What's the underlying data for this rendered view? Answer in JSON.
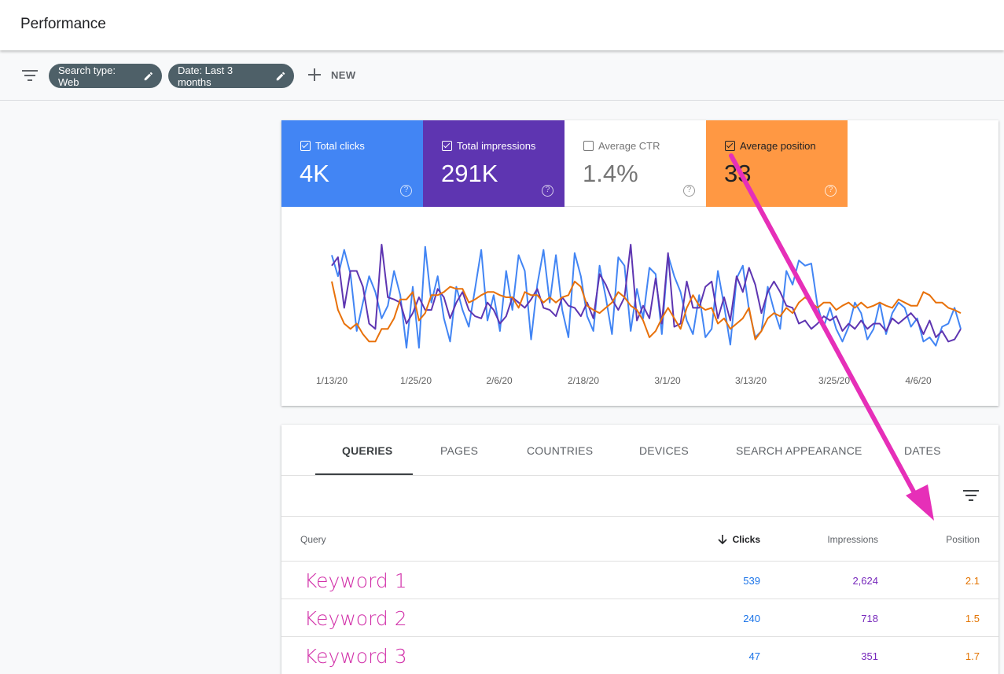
{
  "header": {
    "title": "Performance"
  },
  "filters": {
    "chips": [
      {
        "label": "Search type: Web"
      },
      {
        "label": "Date: Last 3 months"
      }
    ],
    "new_label": "NEW"
  },
  "metrics": [
    {
      "label": "Total clicks",
      "value": "4K",
      "checked": true,
      "color": "#4285f4"
    },
    {
      "label": "Total impressions",
      "value": "291K",
      "checked": true,
      "color": "#5e35b1"
    },
    {
      "label": "Average CTR",
      "value": "1.4%",
      "checked": false,
      "color": "#ffffff"
    },
    {
      "label": "Average position",
      "value": "33",
      "checked": true,
      "color": "#ff9843"
    }
  ],
  "chart_data": {
    "type": "line",
    "x_labels": [
      "1/13/20",
      "1/25/20",
      "2/6/20",
      "2/18/20",
      "3/1/20",
      "3/13/20",
      "3/25/20",
      "4/6/20"
    ],
    "grid": false,
    "legend": "none",
    "series": [
      {
        "color": "#4285f4",
        "values": [
          0.1,
          0.3,
          0.05,
          0.28,
          0.82,
          0.55,
          0.3,
          0.45,
          0.7,
          0.58,
          0.25,
          0.48,
          0.98,
          0.4,
          0.98,
          0.02,
          0.55,
          0.3,
          0.7,
          0.92,
          0.4,
          0.62,
          0.78,
          0.42,
          0.05,
          0.72,
          0.48,
          0.82,
          0.25,
          0.62,
          0.1,
          0.25,
          0.9,
          0.38,
          0.05,
          0.55,
          0.1,
          0.62,
          0.88,
          0.08,
          0.3,
          0.68,
          0.82,
          0.2,
          0.5,
          0.85,
          0.12,
          0.2,
          0.82,
          0.42,
          0.7,
          0.22,
          0.28,
          0.85,
          0.1,
          0.3,
          0.45,
          0.72,
          0.85,
          0.48,
          0.88,
          0.8,
          0.25,
          0.58,
          0.95,
          0.32,
          0.2,
          0.62,
          0.88,
          0.82,
          0.4,
          0.62,
          0.8,
          0.25,
          0.38,
          0.15,
          0.2,
          0.18,
          0.58,
          0.78,
          0.6,
          0.8,
          0.92,
          0.78,
          0.55,
          0.65,
          0.9,
          0.8,
          0.55,
          0.85,
          0.65,
          0.55,
          0.6,
          0.78,
          0.7,
          0.92,
          0.88,
          0.96,
          0.78,
          0.75,
          0.6,
          0.8
        ]
      },
      {
        "color": "#5e35b1",
        "values": [
          0.2,
          0.12,
          0.6,
          0.25,
          0.25,
          0.4,
          0.75,
          0.8,
          0.0,
          0.5,
          0.52,
          0.55,
          0.75,
          0.65,
          0.5,
          0.62,
          0.62,
          0.42,
          0.5,
          0.7,
          0.55,
          0.45,
          0.62,
          0.68,
          0.7,
          0.55,
          0.62,
          0.75,
          0.68,
          0.5,
          0.55,
          0.6,
          0.52,
          0.42,
          0.6,
          0.62,
          0.68,
          0.5,
          0.58,
          0.6,
          0.68,
          0.55,
          0.7,
          0.28,
          0.38,
          0.52,
          0.62,
          0.5,
          0.0,
          0.72,
          0.58,
          0.7,
          0.32,
          0.75,
          0.08,
          0.78,
          0.75,
          0.35,
          0.6,
          0.6,
          0.4,
          0.35,
          0.7,
          0.5,
          0.72,
          0.3,
          0.45,
          0.22,
          0.38,
          0.65,
          0.45,
          0.35,
          0.45,
          0.58,
          0.6,
          0.75,
          0.72,
          0.8,
          0.75,
          0.68,
          0.72,
          0.68,
          0.82,
          0.75,
          0.8,
          0.72,
          0.8,
          0.75,
          0.75,
          0.82,
          0.7,
          0.75,
          0.7,
          0.65,
          0.72,
          0.85,
          0.72,
          0.88,
          0.82,
          0.92,
          0.9,
          0.8
        ]
      },
      {
        "color": "#e8710a",
        "values": [
          0.35,
          0.62,
          0.75,
          0.8,
          0.75,
          0.85,
          0.92,
          0.92,
          0.8,
          0.8,
          0.7,
          0.52,
          0.52,
          0.45,
          0.72,
          0.65,
          0.48,
          0.48,
          0.45,
          0.4,
          0.42,
          0.42,
          0.55,
          0.52,
          0.48,
          0.45,
          0.45,
          0.48,
          0.5,
          0.5,
          0.6,
          0.45,
          0.48,
          0.48,
          0.55,
          0.5,
          0.55,
          0.5,
          0.48,
          0.35,
          0.4,
          0.58,
          0.62,
          0.65,
          0.6,
          0.55,
          0.45,
          0.5,
          0.58,
          0.62,
          0.72,
          0.88,
          0.82,
          0.7,
          0.6,
          0.7,
          0.8,
          0.6,
          0.48,
          0.58,
          0.62,
          0.6,
          0.75,
          0.7,
          0.8,
          0.75,
          0.7,
          0.6,
          0.9,
          0.82,
          0.7,
          0.65,
          0.68,
          0.6,
          0.65,
          0.55,
          0.5,
          0.55,
          0.6,
          0.55,
          0.55,
          0.62,
          0.58,
          0.55,
          0.6,
          0.55,
          0.6,
          0.58,
          0.55,
          0.58,
          0.6,
          0.52,
          0.55,
          0.58,
          0.58,
          0.45,
          0.48,
          0.55,
          0.55,
          0.6,
          0.62,
          0.65
        ]
      }
    ]
  },
  "table": {
    "tabs": [
      "QUERIES",
      "PAGES",
      "COUNTRIES",
      "DEVICES",
      "SEARCH APPEARANCE",
      "DATES"
    ],
    "columns": {
      "query": "Query",
      "clicks": "Clicks",
      "impressions": "Impressions",
      "position": "Position"
    },
    "rows": [
      {
        "query": "Keyword 1",
        "clicks": "539",
        "impressions": "2,624",
        "position": "2.1"
      },
      {
        "query": "Keyword 2",
        "clicks": "240",
        "impressions": "718",
        "position": "1.5"
      },
      {
        "query": "Keyword 3",
        "clicks": "47",
        "impressions": "351",
        "position": "1.7"
      }
    ]
  }
}
